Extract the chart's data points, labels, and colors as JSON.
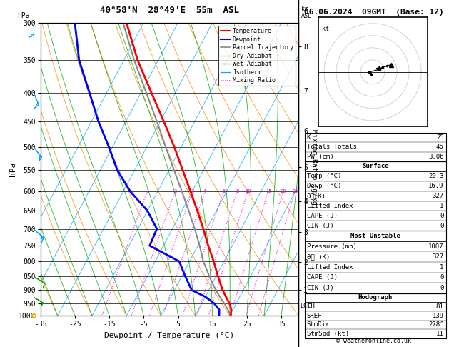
{
  "title_left": "40°58'N  28°49'E  55m  ASL",
  "title_right": "06.06.2024  09GMT  (Base: 12)",
  "xlabel": "Dewpoint / Temperature (°C)",
  "ylabel_left": "hPa",
  "pressure_ticks": [
    300,
    350,
    400,
    450,
    500,
    550,
    600,
    650,
    700,
    750,
    800,
    850,
    900,
    950,
    1000
  ],
  "temp_min": -35,
  "temp_max": 40,
  "skew_factor": 45.0,
  "temp_profile": {
    "pressure": [
      1000,
      975,
      950,
      925,
      900,
      850,
      800,
      750,
      700,
      650,
      600,
      550,
      500,
      450,
      400,
      350,
      300
    ],
    "temperature": [
      20.3,
      19.5,
      18.0,
      16.0,
      14.0,
      10.5,
      7.0,
      3.0,
      -1.0,
      -5.5,
      -10.5,
      -16.0,
      -22.0,
      -29.0,
      -37.0,
      -46.0,
      -55.0
    ]
  },
  "dewpoint_profile": {
    "pressure": [
      1000,
      975,
      950,
      925,
      900,
      850,
      800,
      750,
      700,
      650,
      600,
      550,
      500,
      450,
      400,
      350,
      300
    ],
    "temperature": [
      16.9,
      16.0,
      13.5,
      10.0,
      5.0,
      1.0,
      -3.0,
      -14.0,
      -14.5,
      -20.0,
      -28.0,
      -35.0,
      -41.0,
      -48.0,
      -55.0,
      -63.0,
      -70.0
    ]
  },
  "parcel_profile": {
    "pressure": [
      1000,
      975,
      950,
      925,
      900,
      850,
      800,
      750,
      700,
      650,
      600,
      550,
      500,
      450,
      400,
      350,
      300
    ],
    "temperature": [
      20.3,
      18.5,
      16.5,
      14.2,
      12.0,
      8.0,
      4.0,
      0.5,
      -3.5,
      -8.0,
      -13.0,
      -18.5,
      -24.5,
      -31.0,
      -38.5,
      -47.0,
      -56.0
    ]
  },
  "lcl_pressure": 960,
  "mixing_ratios": [
    1,
    2,
    3,
    4,
    6,
    8,
    10,
    15,
    20,
    25
  ],
  "mixing_ratio_labels": [
    "1",
    "2",
    "3",
    "4",
    "6",
    "8",
    "10",
    "15",
    "20",
    "25"
  ],
  "km_ticks": [
    1,
    2,
    3,
    4,
    5,
    6,
    7,
    8
  ],
  "km_pressures": [
    899,
    802,
    710,
    625,
    543,
    468,
    397,
    331
  ],
  "colors": {
    "temperature": "#ff0000",
    "dewpoint": "#0000ff",
    "parcel": "#888888",
    "dry_adiabat": "#ff8800",
    "wet_adiabat": "#00aa00",
    "isotherm": "#00aaff",
    "mixing_ratio": "#ff00ff",
    "background": "#ffffff",
    "grid": "#000000"
  },
  "wind_barb_pressures": [
    300,
    400,
    500,
    700,
    850,
    925,
    1000
  ],
  "wind_barb_u": [
    0,
    -5,
    -8,
    -10,
    -8,
    -5,
    0
  ],
  "wind_barb_v": [
    15,
    12,
    10,
    8,
    5,
    3,
    2
  ],
  "wind_barb_colors": [
    "#00aaff",
    "#00aaff",
    "#00aaff",
    "#00aaff",
    "#00aa00",
    "#00aa00",
    "#ffaa00"
  ],
  "hodograph_u": [
    -1,
    -2,
    -3,
    5,
    8,
    12,
    15
  ],
  "hodograph_v": [
    -2,
    -1,
    0,
    2,
    4,
    5,
    6
  ],
  "stats": {
    "K": "25",
    "Totals Totals": "46",
    "PW (cm)": "3.06",
    "Temp_C": "20.3",
    "Dewp_C": "16.9",
    "theta_e_K": "327",
    "Lifted Index": "1",
    "CAPE_J": "0",
    "CIN_J": "0",
    "MU_Pressure": "1007",
    "MU_theta_e": "327",
    "MU_LI": "1",
    "MU_CAPE": "0",
    "MU_CIN": "0",
    "EH": "81",
    "SREH": "139",
    "StmDir": "278",
    "StmSpd": "11"
  }
}
